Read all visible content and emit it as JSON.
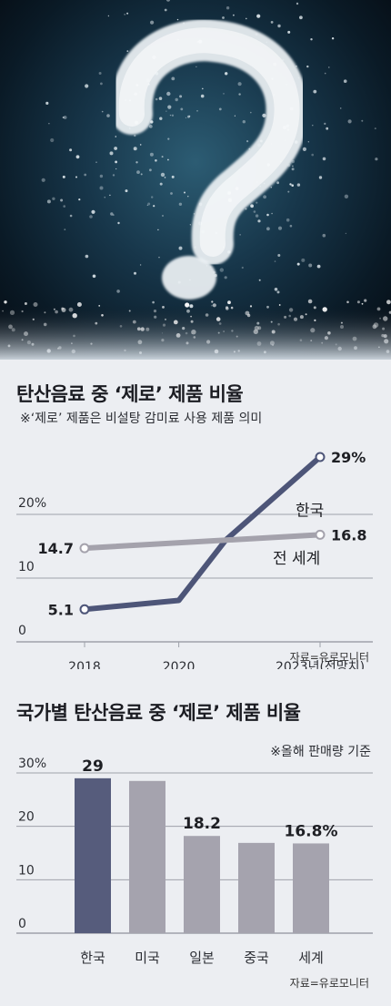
{
  "chart_data": [
    {
      "type": "line",
      "title": "탄산음료 중 ‘제로’ 제품 비율",
      "note": "※‘제로’ 제품은 비설탕 감미료 사용 제품 의미",
      "categories": [
        "2018",
        "2020",
        "2023년(전망치)"
      ],
      "ylim": [
        0,
        30
      ],
      "yticks": [
        "0",
        "10",
        "20%"
      ],
      "grid": true,
      "series": [
        {
          "name": "한국",
          "color": "#4d5578",
          "x": [
            2018,
            2020,
            2021,
            2023
          ],
          "values": [
            5.1,
            6.5,
            16,
            29
          ],
          "labels": [
            "5.1",
            "",
            "",
            "29%"
          ]
        },
        {
          "name": "전 세계",
          "color": "#a4a2ac",
          "x": [
            2018,
            2023
          ],
          "values": [
            14.7,
            16.8
          ],
          "labels": [
            "14.7",
            "16.8"
          ]
        }
      ],
      "source": "자료=유로모니터"
    },
    {
      "type": "bar",
      "title": "국가별 탄산음료 중 ‘제로’ 제품 비율",
      "note": "※올해 판매량 기준",
      "categories": [
        "한국",
        "미국",
        "일본",
        "중국",
        "세계"
      ],
      "values": [
        29,
        28.5,
        18.2,
        16.9,
        16.8
      ],
      "value_labels": [
        "29",
        "",
        "18.2",
        "",
        "16.8%"
      ],
      "colors": [
        "#565c7c",
        "#a5a3ae",
        "#a5a3ae",
        "#a5a3ae",
        "#a5a3ae"
      ],
      "ylim": [
        0,
        30
      ],
      "yticks": [
        "0",
        "10",
        "20",
        "30%"
      ],
      "grid": true,
      "source": "자료=유로모니터"
    }
  ]
}
